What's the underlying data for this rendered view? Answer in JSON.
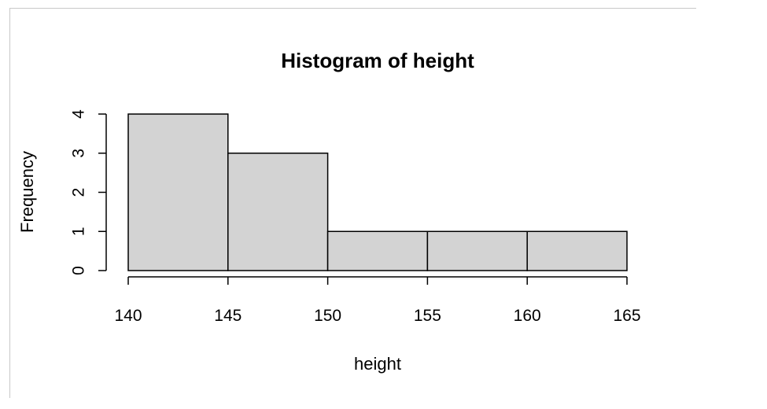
{
  "chart_data": {
    "type": "bar",
    "title": "Histogram of height",
    "xlabel": "height",
    "ylabel": "Frequency",
    "bins": [
      {
        "start": 140,
        "end": 145,
        "count": 4
      },
      {
        "start": 145,
        "end": 150,
        "count": 3
      },
      {
        "start": 150,
        "end": 155,
        "count": 1
      },
      {
        "start": 155,
        "end": 160,
        "count": 1
      },
      {
        "start": 160,
        "end": 165,
        "count": 1
      }
    ],
    "xticks": [
      140,
      145,
      150,
      155,
      160,
      165
    ],
    "yticks": [
      0,
      1,
      2,
      3,
      4
    ],
    "xlim": [
      140,
      165
    ],
    "ylim": [
      0,
      4
    ],
    "grid": false,
    "colors": {
      "bar_fill": "#d3d3d3",
      "bar_stroke": "#000000"
    }
  }
}
